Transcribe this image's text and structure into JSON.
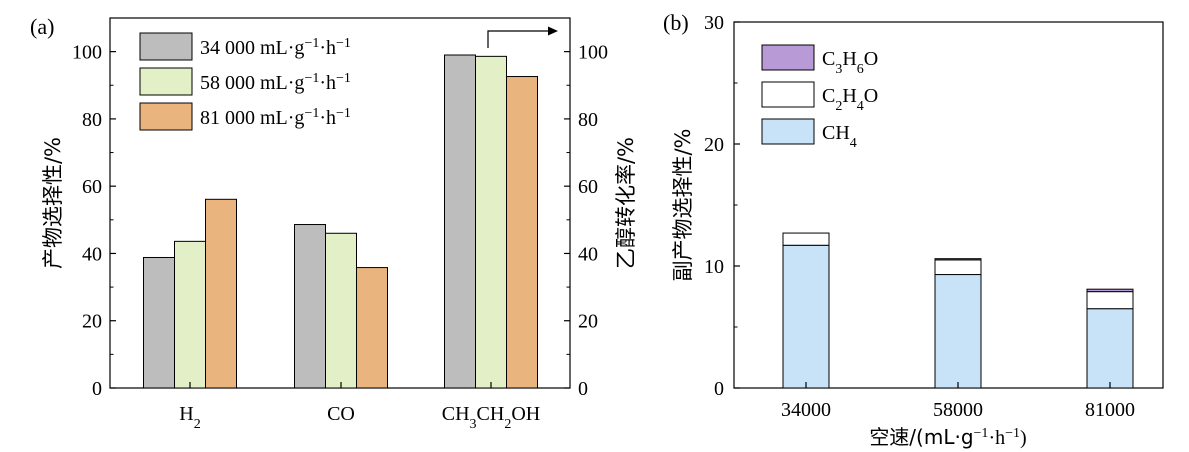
{
  "chart_data": [
    {
      "panel_label": "(a)",
      "type": "bar",
      "categories": [
        {
          "label": "H",
          "sub": "2"
        },
        {
          "label": "CO",
          "sub": ""
        },
        {
          "label": "CH",
          "sub": "3",
          "label2": "CH",
          "sub2": "2",
          "label3": "OH"
        }
      ],
      "series": [
        {
          "name": "34 000 mL·g",
          "sup": "−1",
          "name2": "·h",
          "sup2": "−1",
          "color": "#bdbdbd",
          "values": [
            38.8,
            48.6,
            99.0
          ]
        },
        {
          "name": "58 000 mL·g",
          "sup": "−1",
          "name2": "·h",
          "sup2": "−1",
          "color": "#e3efc6",
          "values": [
            43.6,
            46.0,
            98.6
          ]
        },
        {
          "name": "81 000 mL·g",
          "sup": "−1",
          "name2": "·h",
          "sup2": "−1",
          "color": "#eab47f",
          "values": [
            56.1,
            35.8,
            92.6
          ]
        }
      ],
      "ylabel_left": "产物选择性/%",
      "ylabel_right": "乙醇转化率/%",
      "ylim": [
        0,
        110
      ],
      "yticks": [
        0,
        20,
        40,
        60,
        80,
        100
      ],
      "right_axis_note": "CH3CH2OH bars are read against the right axis",
      "legend_position": "top-left"
    },
    {
      "panel_label": "(b)",
      "type": "bar",
      "stacked": true,
      "categories": [
        "34000",
        "58000",
        "81000"
      ],
      "series": [
        {
          "name": "CH",
          "sub": "4",
          "color": "#c8e2f7",
          "values": [
            11.7,
            9.3,
            6.5
          ]
        },
        {
          "name": "C",
          "sub": "2",
          "name2": "H",
          "sub2": "4",
          "name3": "O",
          "color": "#ffffff",
          "values": [
            1.0,
            1.2,
            1.4
          ]
        },
        {
          "name": "C",
          "sub": "3",
          "name2": "H",
          "sub2": "6",
          "name3": "O",
          "color": "#b89ad6",
          "values": [
            0.0,
            0.1,
            0.2
          ]
        }
      ],
      "xlabel": "空速/(mL·g",
      "xlabel_sup": "−1",
      "xlabel_mid": "·h",
      "xlabel_sup2": "−1",
      "xlabel_end": ")",
      "ylabel": "副产物选择性/%",
      "ylim": [
        0,
        30
      ],
      "yticks": [
        0,
        10,
        20,
        30
      ],
      "legend_position": "top-left"
    }
  ]
}
